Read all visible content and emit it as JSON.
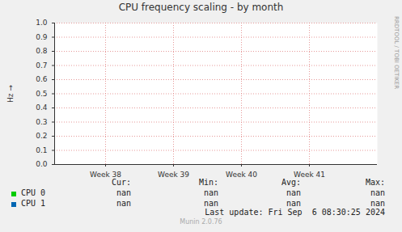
{
  "chart_data": {
    "type": "line",
    "title": "CPU frequency scaling - by month",
    "y_label": "Hz",
    "x": [
      37.25,
      42
    ],
    "xlim": [
      37.25,
      42
    ],
    "xticks": [
      {
        "value": 38,
        "label": "Week 38"
      },
      {
        "value": 39,
        "label": "Week 39"
      },
      {
        "value": 40,
        "label": "Week 40"
      },
      {
        "value": 41,
        "label": "Week 41"
      }
    ],
    "ylim": [
      0,
      1
    ],
    "yticks": [
      {
        "value": 0,
        "label": "0.0"
      },
      0.1,
      0.2,
      0.3,
      0.4,
      0.5,
      0.6,
      0.7,
      0.8,
      0.9,
      {
        "value": 1,
        "label": "1.0"
      }
    ],
    "grid": true,
    "series": [
      {
        "name": "CPU 0",
        "color": "#00cc00",
        "values": [
          null,
          null
        ],
        "stats": [
          "nan",
          "nan",
          "nan",
          "nan"
        ]
      },
      {
        "name": "CPU 1",
        "color": "#0066b3",
        "values": [
          null,
          null
        ],
        "stats": [
          "nan",
          "nan",
          "nan",
          "nan"
        ]
      }
    ],
    "stat_labels": [
      "Cur:",
      "Min:",
      "Avg:",
      "Max:"
    ],
    "footer": "Last update: Fri Sep  6 08:30:25 2024",
    "side_text": "RRDTOOL / TOBI OETIKER",
    "credit": "Munin 2.0.76"
  }
}
